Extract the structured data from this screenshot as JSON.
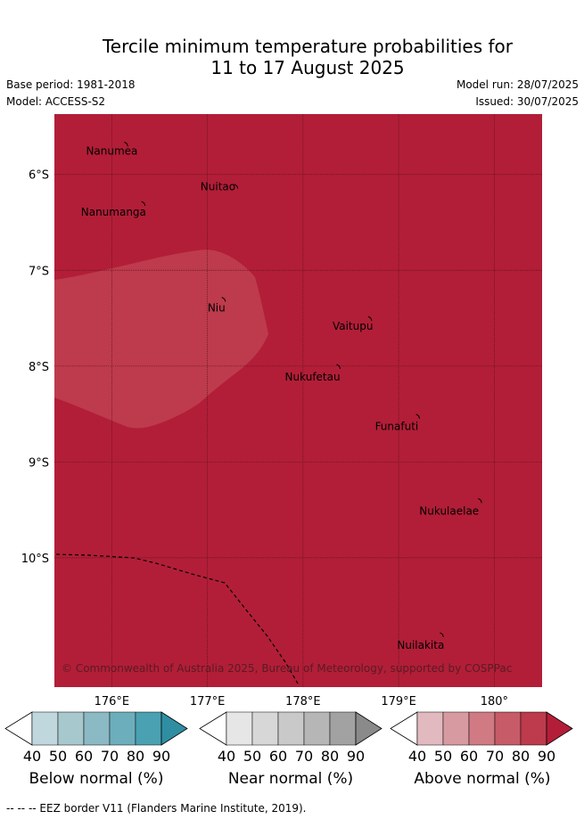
{
  "title_line1": "Tercile minimum temperature probabilities for",
  "title_line2": "11 to 17 August 2025",
  "base_period": "Base period: 1981-2018",
  "model": "Model: ACCESS-S2",
  "model_run": "Model run: 28/07/2025",
  "issued": "Issued: 30/07/2025",
  "lat_labels": [
    "6°S",
    "7°S",
    "8°S",
    "9°S",
    "10°S"
  ],
  "lon_labels": [
    "176°E",
    "177°E",
    "178°E",
    "179°E",
    "180°"
  ],
  "places": [
    {
      "name": "Nanumea",
      "lon": 176.15,
      "lat": -5.68
    },
    {
      "name": "Nuitao",
      "lon": 177.3,
      "lat": -6.12
    },
    {
      "name": "Nanumanga",
      "lon": 176.33,
      "lat": -6.3
    },
    {
      "name": "Niu",
      "lon": 177.17,
      "lat": -7.3
    },
    {
      "name": "Vaitupu",
      "lon": 178.7,
      "lat": -7.5
    },
    {
      "name": "Nukufetau",
      "lon": 178.37,
      "lat": -8.0
    },
    {
      "name": "Funafuti",
      "lon": 179.2,
      "lat": -8.52
    },
    {
      "name": "Nukulaelae",
      "lon": 179.85,
      "lat": -9.4
    },
    {
      "name": "Nuilakita",
      "lon": 179.45,
      "lat": -10.8
    }
  ],
  "copyright": "© Commonwealth of Australia 2025, Bureau of Meteorology, supported by COSPPac",
  "colorbars": [
    {
      "label": "Below normal (%)",
      "colors": [
        "#c0d8dd",
        "#a7c8cd",
        "#8bb9c4",
        "#6daebd",
        "#4aa1b2",
        "#2f8ea2"
      ]
    },
    {
      "label": "Near normal (%)",
      "colors": [
        "#e6e6e6",
        "#d7d7d7",
        "#c9c9c9",
        "#b6b6b6",
        "#a2a2a2",
        "#8a8a8a"
      ]
    },
    {
      "label": "Above normal (%)",
      "colors": [
        "#e1b9bf",
        "#d89aa1",
        "#d07a84",
        "#c75b68",
        "#bd3b4c",
        "#b41d38"
      ]
    }
  ],
  "colorbar_ticks": [
    "40",
    "50",
    "60",
    "70",
    "80",
    "90"
  ],
  "map_colors": {
    "dominant": "#b21e37",
    "region": "#bd3b4c"
  },
  "footer": "--  --  -- EEZ border V11 (Flanders Marine Institute, 2019)."
}
